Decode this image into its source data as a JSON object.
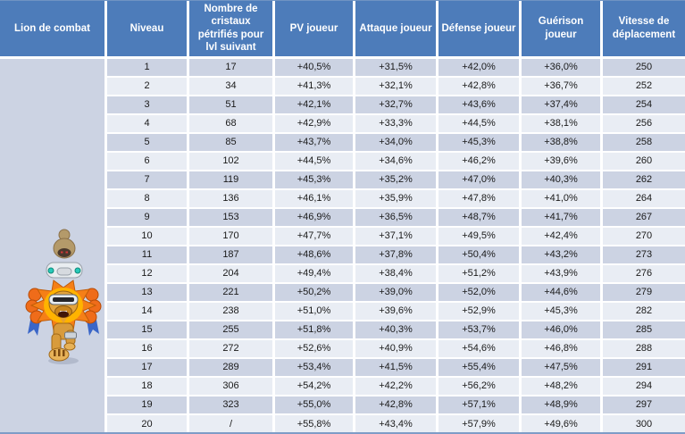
{
  "colors": {
    "header_bg": "#4d7cba",
    "header_text": "#ffffff",
    "band_dark": "#ccd3e3",
    "band_light": "#e9edf4",
    "separator": "#ffffff",
    "bottom_border": "#7f9cc7",
    "body_text": "#1a1a1a"
  },
  "table": {
    "mount_name": "Lion de combat",
    "mount_image": "combat-lion-with-rider-sprite",
    "headers": [
      "Lion de combat",
      "Niveau",
      "Nombre de cristaux pétrifiés pour lvl suivant",
      "PV joueur",
      "Attaque joueur",
      "Défense joueur",
      "Guérison joueur",
      "Vitesse de déplacement"
    ],
    "rows": [
      [
        "1",
        "17",
        "+40,5%",
        "+31,5%",
        "+42,0%",
        "+36,0%",
        "250"
      ],
      [
        "2",
        "34",
        "+41,3%",
        "+32,1%",
        "+42,8%",
        "+36,7%",
        "252"
      ],
      [
        "3",
        "51",
        "+42,1%",
        "+32,7%",
        "+43,6%",
        "+37,4%",
        "254"
      ],
      [
        "4",
        "68",
        "+42,9%",
        "+33,3%",
        "+44,5%",
        "+38,1%",
        "256"
      ],
      [
        "5",
        "85",
        "+43,7%",
        "+34,0%",
        "+45,3%",
        "+38,8%",
        "258"
      ],
      [
        "6",
        "102",
        "+44,5%",
        "+34,6%",
        "+46,2%",
        "+39,6%",
        "260"
      ],
      [
        "7",
        "119",
        "+45,3%",
        "+35,2%",
        "+47,0%",
        "+40,3%",
        "262"
      ],
      [
        "8",
        "136",
        "+46,1%",
        "+35,9%",
        "+47,8%",
        "+41,0%",
        "264"
      ],
      [
        "9",
        "153",
        "+46,9%",
        "+36,5%",
        "+48,7%",
        "+41,7%",
        "267"
      ],
      [
        "10",
        "170",
        "+47,7%",
        "+37,1%",
        "+49,5%",
        "+42,4%",
        "270"
      ],
      [
        "11",
        "187",
        "+48,6%",
        "+37,8%",
        "+50,4%",
        "+43,2%",
        "273"
      ],
      [
        "12",
        "204",
        "+49,4%",
        "+38,4%",
        "+51,2%",
        "+43,9%",
        "276"
      ],
      [
        "13",
        "221",
        "+50,2%",
        "+39,0%",
        "+52,0%",
        "+44,6%",
        "279"
      ],
      [
        "14",
        "238",
        "+51,0%",
        "+39,6%",
        "+52,9%",
        "+45,3%",
        "282"
      ],
      [
        "15",
        "255",
        "+51,8%",
        "+40,3%",
        "+53,7%",
        "+46,0%",
        "285"
      ],
      [
        "16",
        "272",
        "+52,6%",
        "+40,9%",
        "+54,6%",
        "+46,8%",
        "288"
      ],
      [
        "17",
        "289",
        "+53,4%",
        "+41,5%",
        "+55,4%",
        "+47,5%",
        "291"
      ],
      [
        "18",
        "306",
        "+54,2%",
        "+42,2%",
        "+56,2%",
        "+48,2%",
        "294"
      ],
      [
        "19",
        "323",
        "+55,0%",
        "+42,8%",
        "+57,1%",
        "+48,9%",
        "297"
      ],
      [
        "20",
        "/",
        "+55,8%",
        "+43,4%",
        "+57,9%",
        "+49,6%",
        "300"
      ]
    ]
  },
  "chart_data": {
    "type": "table",
    "title": "Lion de combat",
    "columns": [
      "Niveau",
      "Nombre de cristaux pétrifiés pour lvl suivant",
      "PV joueur",
      "Attaque joueur",
      "Défense joueur",
      "Guérison joueur",
      "Vitesse de déplacement"
    ],
    "rows": [
      [
        "1",
        "17",
        "+40,5%",
        "+31,5%",
        "+42,0%",
        "+36,0%",
        "250"
      ],
      [
        "2",
        "34",
        "+41,3%",
        "+32,1%",
        "+42,8%",
        "+36,7%",
        "252"
      ],
      [
        "3",
        "51",
        "+42,1%",
        "+32,7%",
        "+43,6%",
        "+37,4%",
        "254"
      ],
      [
        "4",
        "68",
        "+42,9%",
        "+33,3%",
        "+44,5%",
        "+38,1%",
        "256"
      ],
      [
        "5",
        "85",
        "+43,7%",
        "+34,0%",
        "+45,3%",
        "+38,8%",
        "258"
      ],
      [
        "6",
        "102",
        "+44,5%",
        "+34,6%",
        "+46,2%",
        "+39,6%",
        "260"
      ],
      [
        "7",
        "119",
        "+45,3%",
        "+35,2%",
        "+47,0%",
        "+40,3%",
        "262"
      ],
      [
        "8",
        "136",
        "+46,1%",
        "+35,9%",
        "+47,8%",
        "+41,0%",
        "264"
      ],
      [
        "9",
        "153",
        "+46,9%",
        "+36,5%",
        "+48,7%",
        "+41,7%",
        "267"
      ],
      [
        "10",
        "170",
        "+47,7%",
        "+37,1%",
        "+49,5%",
        "+42,4%",
        "270"
      ],
      [
        "11",
        "187",
        "+48,6%",
        "+37,8%",
        "+50,4%",
        "+43,2%",
        "273"
      ],
      [
        "12",
        "204",
        "+49,4%",
        "+38,4%",
        "+51,2%",
        "+43,9%",
        "276"
      ],
      [
        "13",
        "221",
        "+50,2%",
        "+39,0%",
        "+52,0%",
        "+44,6%",
        "279"
      ],
      [
        "14",
        "238",
        "+51,0%",
        "+39,6%",
        "+52,9%",
        "+45,3%",
        "282"
      ],
      [
        "15",
        "255",
        "+51,8%",
        "+40,3%",
        "+53,7%",
        "+46,0%",
        "285"
      ],
      [
        "16",
        "272",
        "+52,6%",
        "+40,9%",
        "+54,6%",
        "+46,8%",
        "288"
      ],
      [
        "17",
        "289",
        "+53,4%",
        "+41,5%",
        "+55,4%",
        "+47,5%",
        "291"
      ],
      [
        "18",
        "306",
        "+54,2%",
        "+42,2%",
        "+56,2%",
        "+48,2%",
        "294"
      ],
      [
        "19",
        "323",
        "+55,0%",
        "+42,8%",
        "+57,1%",
        "+48,9%",
        "297"
      ],
      [
        "20",
        "/",
        "+55,8%",
        "+43,4%",
        "+57,9%",
        "+49,6%",
        "300"
      ]
    ]
  }
}
